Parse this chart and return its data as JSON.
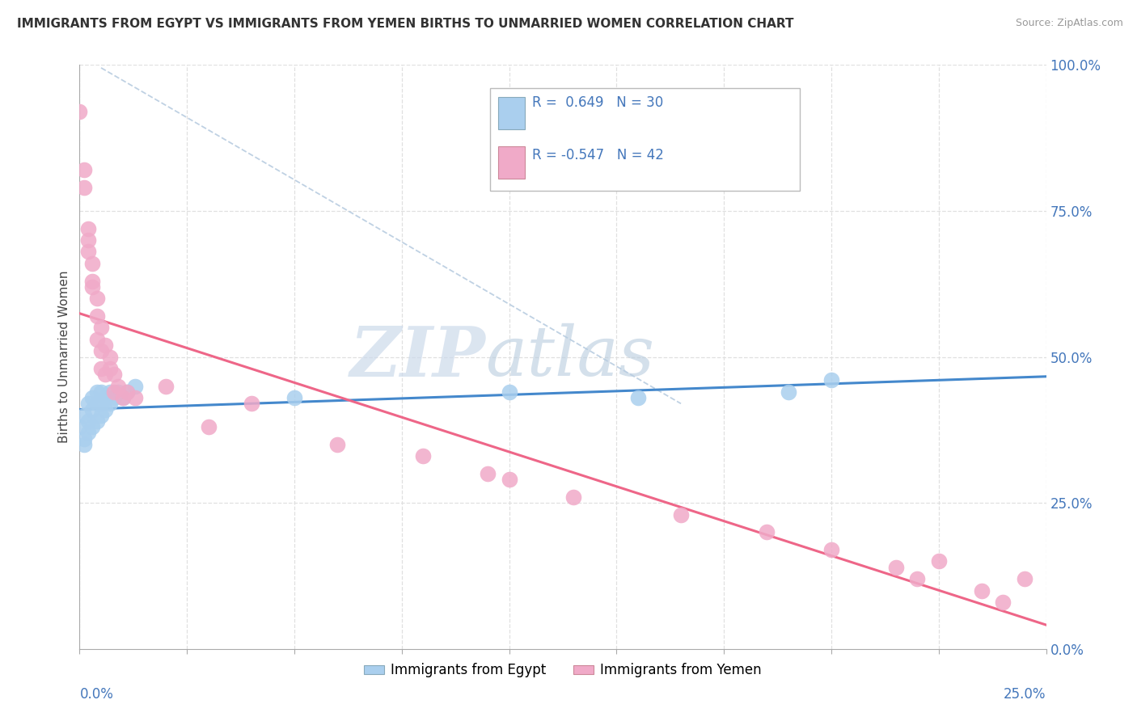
{
  "title": "IMMIGRANTS FROM EGYPT VS IMMIGRANTS FROM YEMEN BIRTHS TO UNMARRIED WOMEN CORRELATION CHART",
  "source": "Source: ZipAtlas.com",
  "ylabel_label": "Births to Unmarried Women",
  "legend_egypt": "R =  0.649   N = 30",
  "legend_yemen": "R = -0.547   N = 42",
  "legend_label_egypt": "Immigrants from Egypt",
  "legend_label_yemen": "Immigrants from Yemen",
  "egypt_color": "#aacfee",
  "yemen_color": "#f0aac8",
  "egypt_line_color": "#4488cc",
  "yemen_line_color": "#ee6688",
  "egypt_x": [
    0.0,
    0.001,
    0.001,
    0.001,
    0.002,
    0.002,
    0.002,
    0.003,
    0.003,
    0.003,
    0.004,
    0.004,
    0.004,
    0.005,
    0.005,
    0.005,
    0.006,
    0.006,
    0.007,
    0.007,
    0.008,
    0.009,
    0.01,
    0.011,
    0.013,
    0.05,
    0.1,
    0.13,
    0.165,
    0.175
  ],
  "egypt_y": [
    0.38,
    0.35,
    0.4,
    0.36,
    0.39,
    0.42,
    0.37,
    0.38,
    0.41,
    0.43,
    0.39,
    0.42,
    0.44,
    0.4,
    0.42,
    0.44,
    0.41,
    0.43,
    0.42,
    0.44,
    0.43,
    0.44,
    0.43,
    0.44,
    0.45,
    0.43,
    0.44,
    0.43,
    0.44,
    0.46
  ],
  "yemen_x": [
    0.0,
    0.001,
    0.001,
    0.002,
    0.002,
    0.002,
    0.003,
    0.003,
    0.003,
    0.004,
    0.004,
    0.004,
    0.005,
    0.005,
    0.005,
    0.006,
    0.006,
    0.007,
    0.007,
    0.008,
    0.008,
    0.009,
    0.01,
    0.011,
    0.013,
    0.02,
    0.03,
    0.04,
    0.06,
    0.08,
    0.095,
    0.1,
    0.115,
    0.14,
    0.16,
    0.175,
    0.19,
    0.195,
    0.2,
    0.21,
    0.215,
    0.22
  ],
  "yemen_y": [
    0.92,
    0.82,
    0.79,
    0.7,
    0.68,
    0.72,
    0.66,
    0.63,
    0.62,
    0.6,
    0.57,
    0.53,
    0.55,
    0.51,
    0.48,
    0.52,
    0.47,
    0.5,
    0.48,
    0.47,
    0.44,
    0.45,
    0.43,
    0.44,
    0.43,
    0.45,
    0.38,
    0.42,
    0.35,
    0.33,
    0.3,
    0.29,
    0.26,
    0.23,
    0.2,
    0.17,
    0.14,
    0.12,
    0.15,
    0.1,
    0.08,
    0.12
  ],
  "xlim": [
    0.0,
    0.225
  ],
  "ylim": [
    0.0,
    1.0
  ],
  "background_color": "#ffffff",
  "grid_color": "#e0e0e0",
  "axis_color": "#aaaaaa",
  "label_color": "#4477bb",
  "watermark_color": "#dce8f5"
}
